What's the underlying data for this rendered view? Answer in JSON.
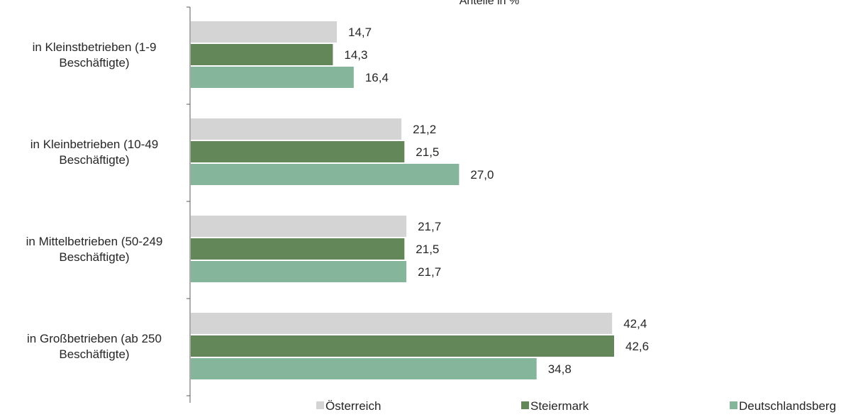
{
  "chart_data": {
    "type": "bar",
    "orientation": "horizontal",
    "unit_label": "Anteile in %",
    "categories": [
      [
        "in Kleinstbetrieben (1-9",
        "Beschäftigte)"
      ],
      [
        "in Kleinbetrieben (10-49",
        "Beschäftigte)"
      ],
      [
        "in Mittelbetrieben (50-249",
        "Beschäftigte)"
      ],
      [
        "in Großbetrieben (ab 250",
        "Beschäftigte)"
      ]
    ],
    "series": [
      {
        "name": "Österreich",
        "color": "#d4d4d4",
        "values": [
          14.7,
          21.2,
          21.7,
          42.4
        ],
        "labels": [
          "14,7",
          "21,2",
          "21,7",
          "42,4"
        ]
      },
      {
        "name": "Steiermark",
        "color": "#64875a",
        "values": [
          14.3,
          21.5,
          21.5,
          42.6
        ],
        "labels": [
          "14,3",
          "21,5",
          "21,5",
          "42,6"
        ]
      },
      {
        "name": "Deutschlandsberg",
        "color": "#85b59a",
        "values": [
          16.4,
          27.0,
          21.7,
          34.8
        ],
        "labels": [
          "16,4",
          "27,0",
          "21,7",
          "34,8"
        ]
      }
    ],
    "xlim": [
      0,
      43
    ],
    "grid": false,
    "legend_position": "bottom"
  }
}
